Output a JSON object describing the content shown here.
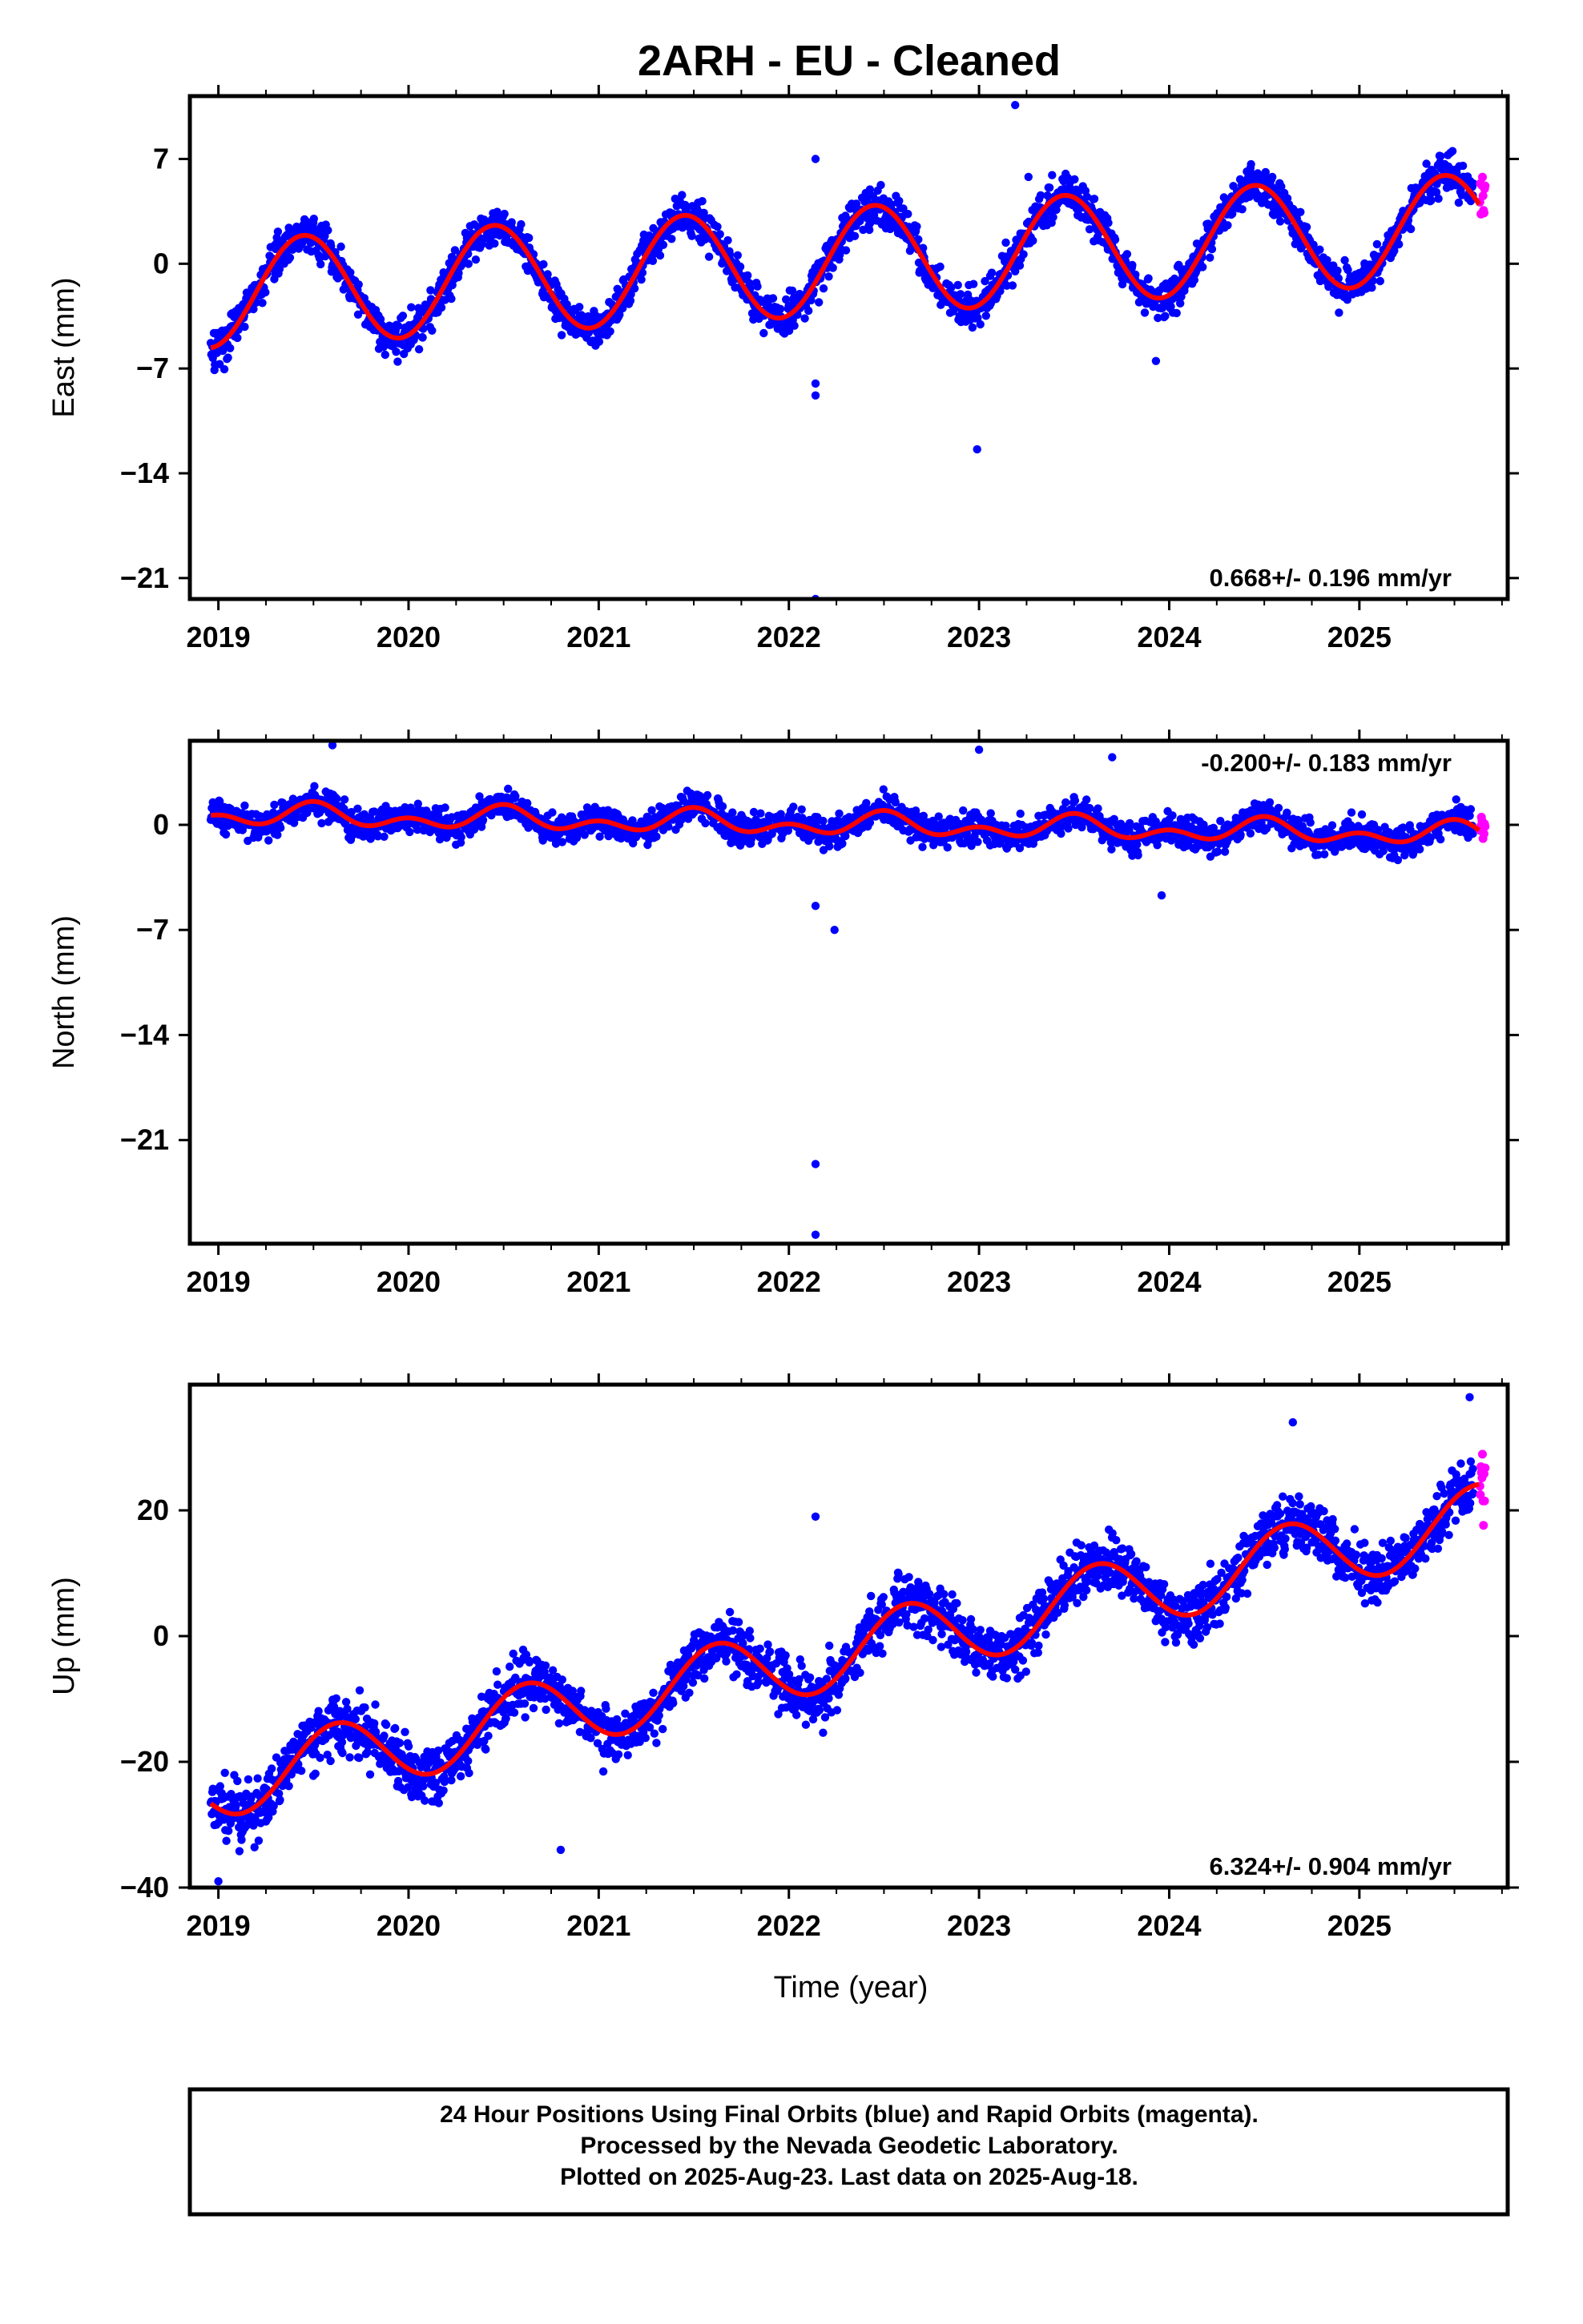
{
  "title": "2ARH  - EU - Cleaned",
  "colors": {
    "final": "#0000ff",
    "rapid": "#ff00ff",
    "model": "#ff0000",
    "frame": "#000000"
  },
  "xlabel": "Time (year)",
  "footer": {
    "line1": "24 Hour Positions Using Final Orbits (blue) and Rapid Orbits (magenta).",
    "line2": "Processed by the Nevada Geodetic Laboratory.",
    "line3": "Plotted on 2025-Aug-23. Last data on 2025-Aug-18."
  },
  "chart_data": [
    {
      "type": "scatter",
      "component": "East",
      "ylabel": "East (mm)",
      "rate_label": "0.668+/- 0.196 mm/yr",
      "rate_position": "bottom-right",
      "xlim": [
        2018.85,
        2025.78
      ],
      "ylim": [
        -22.4,
        11.2
      ],
      "xticks": [
        2019,
        2020,
        2021,
        2022,
        2023,
        2024,
        2025
      ],
      "xtick_labels": [
        "2019",
        "2020",
        "2021",
        "2022",
        "2023",
        "2024",
        "2025"
      ],
      "yticks": [
        7,
        0,
        -7,
        -14,
        -21
      ],
      "ytick_labels": [
        "7",
        "0",
        "−7",
        "−14",
        "−21"
      ],
      "series": [
        {
          "name": "Final Orbits",
          "model": {
            "offset": 0.2,
            "trend": 0.668,
            "ref_year": 2022.3,
            "annual_amp": 3.6,
            "annual_peak": 0.45,
            "semi_amp": 0.0,
            "semi_peak": 0.0,
            "scatter": 1.2
          }
        },
        {
          "name": "Rapid Orbits",
          "x_range": [
            2025.6,
            2025.63
          ]
        }
      ],
      "outliers": [
        [
          2022.14,
          7.0
        ],
        [
          2022.14,
          -8.0
        ],
        [
          2022.14,
          -8.8
        ],
        [
          2022.14,
          -22.4
        ],
        [
          2022.99,
          -12.4
        ],
        [
          2023.19,
          10.6
        ],
        [
          2023.93,
          -6.5
        ],
        [
          2023.26,
          5.8
        ]
      ]
    },
    {
      "type": "scatter",
      "component": "North",
      "ylabel": "North (mm)",
      "rate_label": "-0.200+/- 0.183 mm/yr",
      "rate_position": "top-right",
      "xlim": [
        2018.85,
        2025.78
      ],
      "ylim": [
        -27.9,
        5.6
      ],
      "xticks": [
        2019,
        2020,
        2021,
        2022,
        2023,
        2024,
        2025
      ],
      "xtick_labels": [
        "2019",
        "2020",
        "2021",
        "2022",
        "2023",
        "2024",
        "2025"
      ],
      "yticks": [
        0,
        -7,
        -14,
        -21
      ],
      "ytick_labels": [
        "0",
        "−7",
        "−14",
        "−21"
      ],
      "series": [
        {
          "name": "Final Orbits",
          "model": {
            "offset": 0.0,
            "trend": -0.2,
            "ref_year": 2022.3,
            "annual_amp": 0.5,
            "annual_peak": 0.5,
            "semi_amp": 0.5,
            "semi_peak": 0.0,
            "scatter": 0.9
          }
        },
        {
          "name": "Rapid Orbits",
          "x_range": [
            2025.6,
            2025.63
          ]
        }
      ],
      "outliers": [
        [
          2022.14,
          -22.6
        ],
        [
          2022.14,
          -27.3
        ],
        [
          2022.14,
          -5.4
        ],
        [
          2022.24,
          -7.0
        ],
        [
          2023.0,
          5.0
        ],
        [
          2023.7,
          4.5
        ],
        [
          2019.6,
          5.3
        ],
        [
          2023.96,
          -4.7
        ]
      ]
    },
    {
      "type": "scatter",
      "component": "Up",
      "ylabel": "Up (mm)",
      "rate_label": "6.324+/- 0.904 mm/yr",
      "rate_position": "bottom-right",
      "xlim": [
        2018.85,
        2025.78
      ],
      "ylim": [
        -40,
        40
      ],
      "xticks": [
        2019,
        2020,
        2021,
        2022,
        2023,
        2024,
        2025
      ],
      "xtick_labels": [
        "2019",
        "2020",
        "2021",
        "2022",
        "2023",
        "2024",
        "2025"
      ],
      "yticks": [
        20,
        0,
        -20,
        -40
      ],
      "ytick_labels": [
        "20",
        "0",
        "−20",
        "−40"
      ],
      "series": [
        {
          "name": "Final Orbits",
          "model": {
            "offset": -2.5,
            "trend": 6.324,
            "ref_year": 2022.3,
            "annual_amp": 5.6,
            "annual_peak": 0.62,
            "semi_amp": 0.0,
            "semi_peak": 0.0,
            "scatter": 4.2
          }
        },
        {
          "name": "Rapid Orbits",
          "x_range": [
            2025.6,
            2025.63
          ]
        }
      ],
      "outliers": [
        [
          2019.0,
          -39
        ],
        [
          2022.14,
          19
        ],
        [
          2020.8,
          -34
        ],
        [
          2024.65,
          34
        ],
        [
          2025.58,
          38
        ]
      ]
    }
  ]
}
